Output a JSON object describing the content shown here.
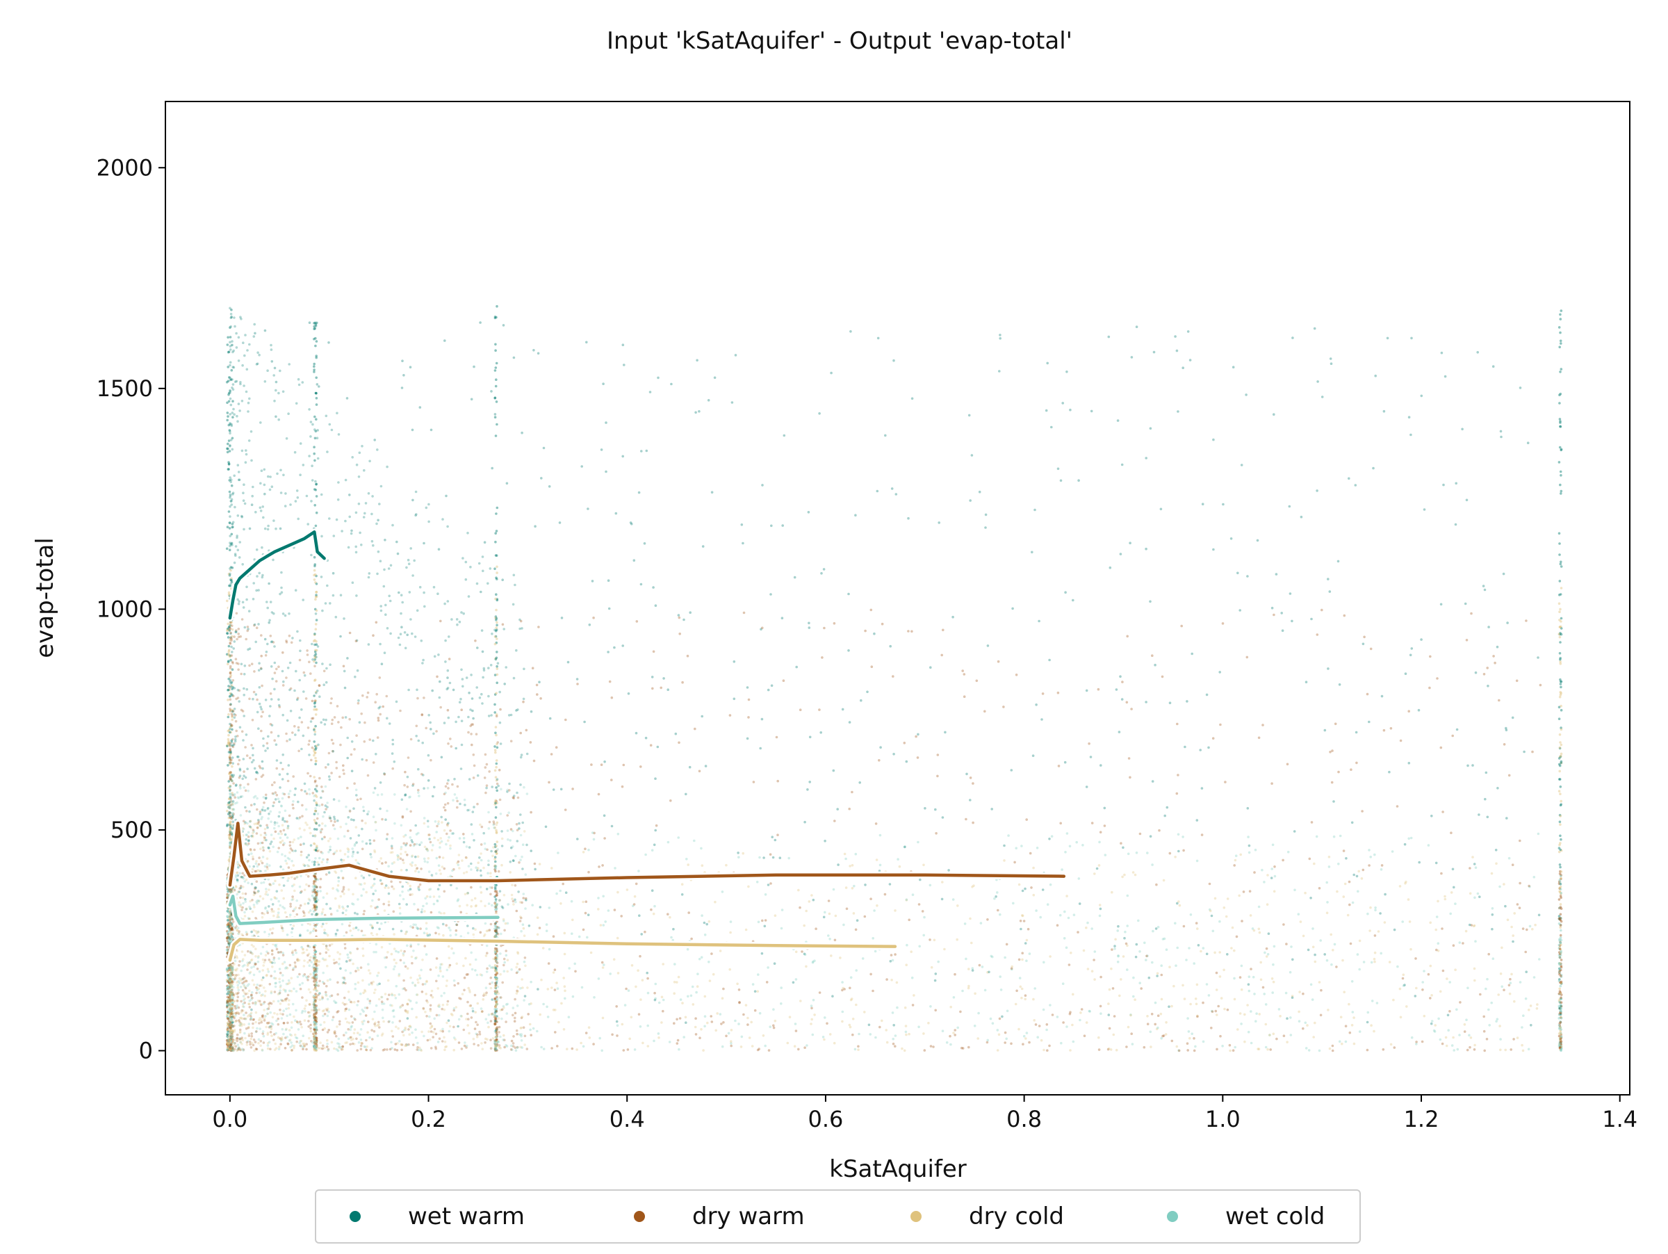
{
  "chart_data": {
    "type": "scatter",
    "title": "Input 'kSatAquifer' - Output 'evap-total'",
    "xlabel": "kSatAquifer",
    "ylabel": "evap-total",
    "xlim": [
      -0.065,
      1.41
    ],
    "ylim": [
      -100,
      2150
    ],
    "xticks": [
      0.0,
      0.2,
      0.4,
      0.6,
      0.8,
      1.0,
      1.2,
      1.4
    ],
    "xtick_labels": [
      "0.0",
      "0.2",
      "0.4",
      "0.6",
      "0.8",
      "1.0",
      "1.2",
      "1.4"
    ],
    "yticks": [
      0,
      500,
      1000,
      1500,
      2000
    ],
    "ytick_labels": [
      "0",
      "500",
      "1000",
      "1500",
      "2000"
    ],
    "grid": false,
    "legend_position": "bottom-center",
    "series": [
      {
        "name": "wet warm",
        "color": "#01796f",
        "trend_x": [
          0.0,
          0.003,
          0.006,
          0.01,
          0.02,
          0.03,
          0.045,
          0.06,
          0.075,
          0.085,
          0.088,
          0.095
        ],
        "trend_y": [
          980,
          1020,
          1055,
          1070,
          1090,
          1110,
          1130,
          1145,
          1160,
          1175,
          1130,
          1115
        ]
      },
      {
        "name": "dry warm",
        "color": "#a0561a",
        "trend_x": [
          0.0,
          0.004,
          0.008,
          0.012,
          0.02,
          0.04,
          0.06,
          0.085,
          0.12,
          0.16,
          0.2,
          0.27,
          0.4,
          0.55,
          0.7,
          0.84
        ],
        "trend_y": [
          375,
          440,
          515,
          430,
          395,
          398,
          402,
          410,
          420,
          395,
          385,
          385,
          392,
          398,
          398,
          395
        ]
      },
      {
        "name": "dry cold",
        "color": "#dfc27d",
        "trend_x": [
          0.0,
          0.004,
          0.01,
          0.03,
          0.085,
          0.15,
          0.27,
          0.4,
          0.55,
          0.67
        ],
        "trend_y": [
          205,
          240,
          252,
          250,
          250,
          252,
          248,
          242,
          238,
          236
        ]
      },
      {
        "name": "wet cold",
        "color": "#80cdc1",
        "trend_x": [
          0.0,
          0.003,
          0.006,
          0.01,
          0.03,
          0.085,
          0.15,
          0.27
        ],
        "trend_y": [
          330,
          350,
          305,
          288,
          290,
          297,
          300,
          302
        ]
      }
    ]
  }
}
